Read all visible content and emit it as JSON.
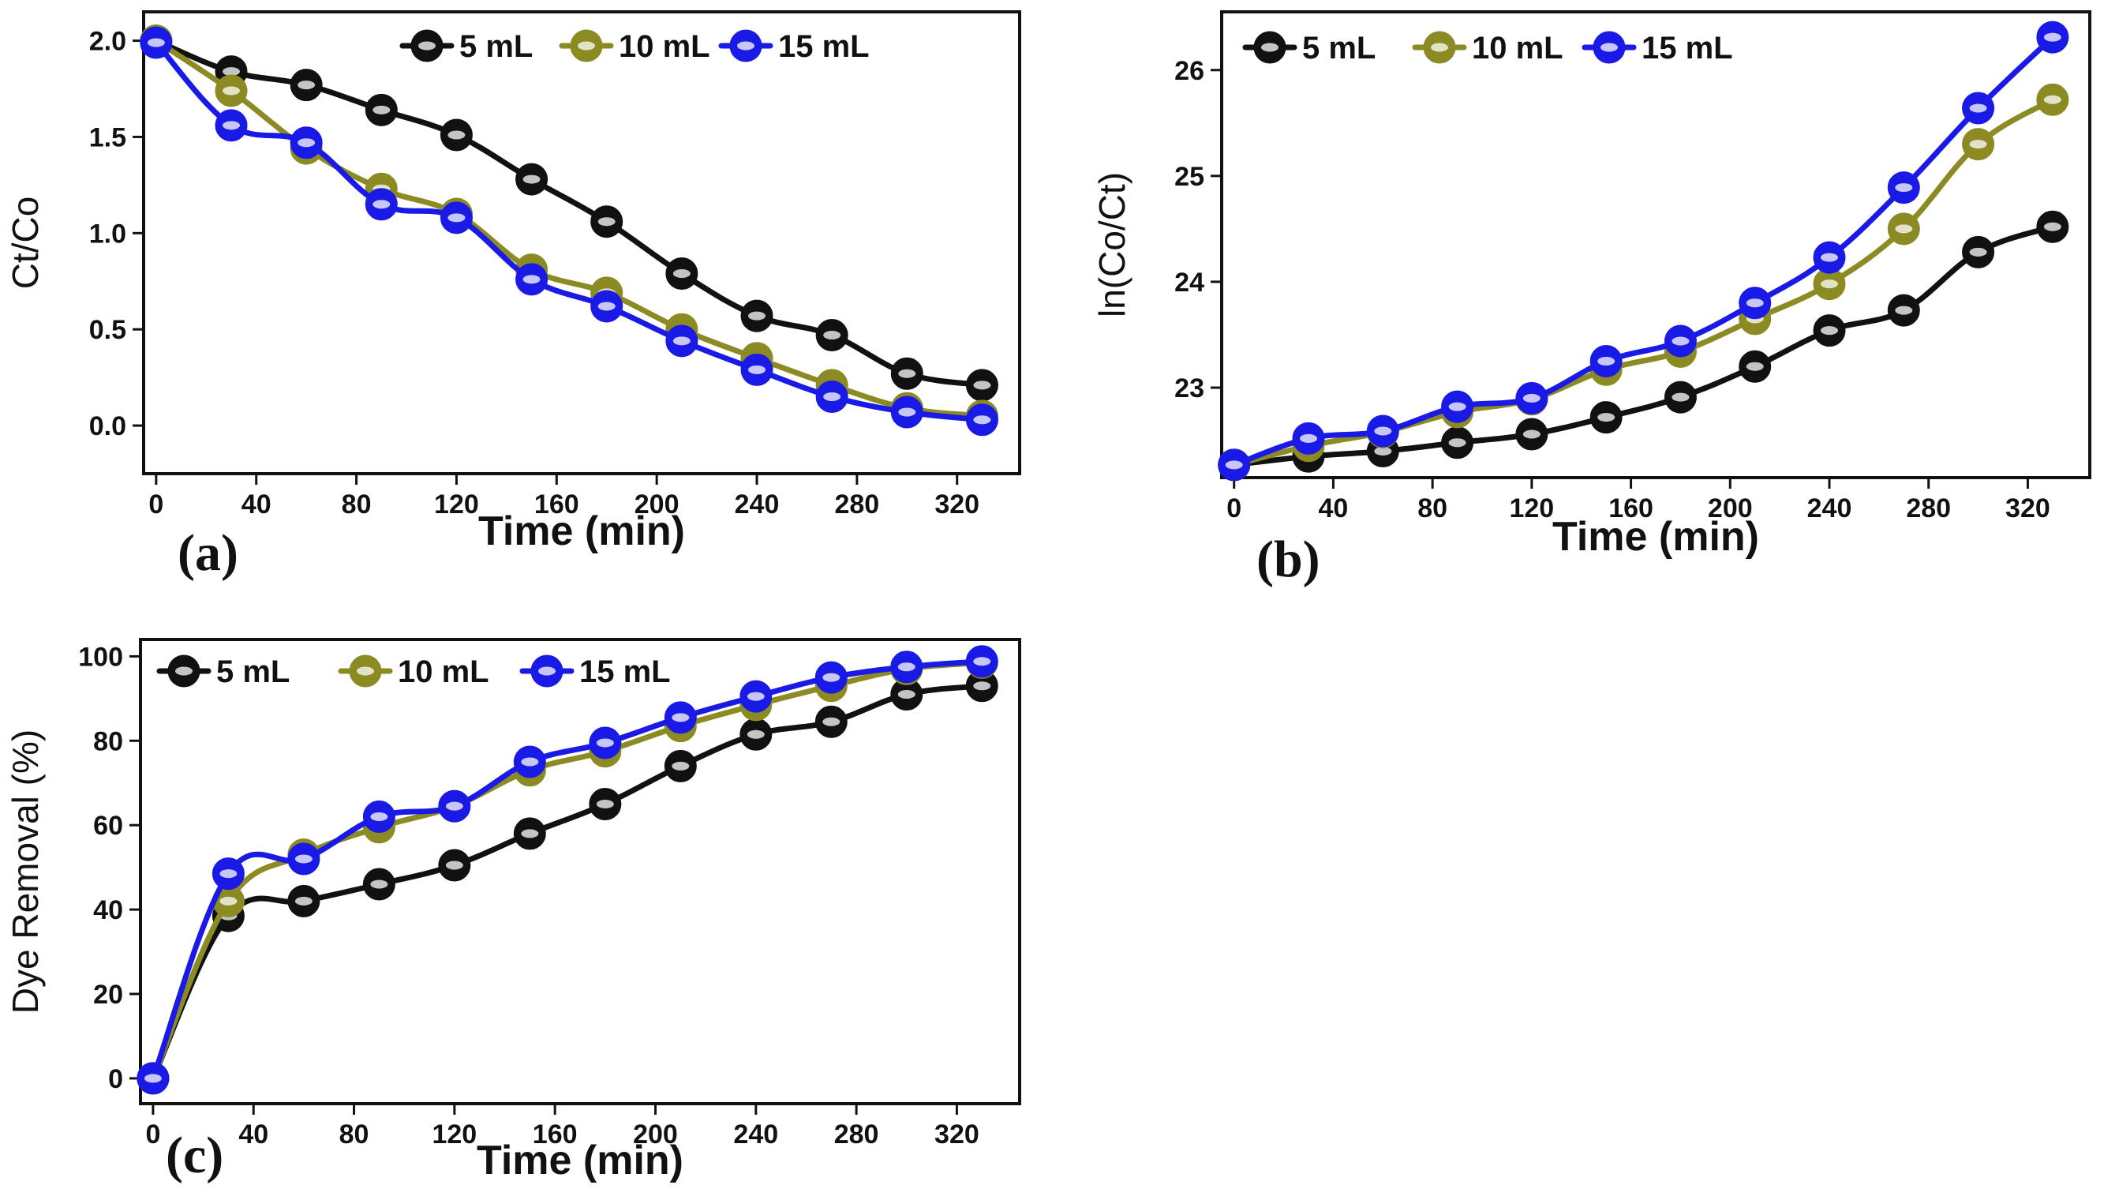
{
  "chart_data": [
    {
      "panel": "(a)",
      "type": "line",
      "xlabel": "Time (min)",
      "ylabel": "Ct/Co",
      "xlim": [
        -5,
        345
      ],
      "ylim": [
        -0.25,
        2.15
      ],
      "xticks": [
        "0",
        "40",
        "80",
        "120",
        "160",
        "200",
        "240",
        "280",
        "320"
      ],
      "yticks": [
        "0.0",
        "0.5",
        "1.0",
        "1.5",
        "2.0"
      ],
      "legend_position": "top",
      "x": [
        0,
        30,
        60,
        90,
        120,
        150,
        180,
        210,
        240,
        270,
        300,
        330
      ],
      "series": [
        {
          "name": "5 mL",
          "color": "#111111",
          "values": [
            2.0,
            1.84,
            1.77,
            1.64,
            1.51,
            1.28,
            1.06,
            0.79,
            0.57,
            0.47,
            0.27,
            0.21
          ]
        },
        {
          "name": "10 mL",
          "color": "#8c8a22",
          "values": [
            2.0,
            1.74,
            1.44,
            1.23,
            1.1,
            0.81,
            0.69,
            0.5,
            0.35,
            0.21,
            0.09,
            0.05
          ]
        },
        {
          "name": "15 mL",
          "color": "#1a1ae6",
          "values": [
            1.99,
            1.56,
            1.47,
            1.15,
            1.08,
            0.76,
            0.62,
            0.44,
            0.29,
            0.15,
            0.07,
            0.03
          ]
        }
      ]
    },
    {
      "panel": "(b)",
      "type": "line",
      "xlabel": "Time (min)",
      "ylabel": "ln(Co/Ct)",
      "xlim": [
        -5,
        345
      ],
      "ylim": [
        22.15,
        26.55
      ],
      "xticks": [
        "0",
        "40",
        "80",
        "120",
        "160",
        "200",
        "240",
        "280",
        "320"
      ],
      "yticks": [
        "23",
        "24",
        "25",
        "26"
      ],
      "legend_position": "top",
      "x": [
        0,
        30,
        60,
        90,
        120,
        150,
        180,
        210,
        240,
        270,
        300,
        330
      ],
      "series": [
        {
          "name": "5 mL",
          "color": "#111111",
          "values": [
            22.27,
            22.35,
            22.4,
            22.48,
            22.56,
            22.72,
            22.91,
            23.2,
            23.54,
            23.73,
            24.28,
            24.52
          ]
        },
        {
          "name": "10 mL",
          "color": "#8c8a22",
          "values": [
            22.27,
            22.45,
            22.58,
            22.77,
            22.89,
            23.17,
            23.34,
            23.65,
            23.98,
            24.5,
            25.3,
            25.72
          ]
        },
        {
          "name": "15 mL",
          "color": "#1a1ae6",
          "values": [
            22.27,
            22.52,
            22.59,
            22.82,
            22.9,
            23.25,
            23.44,
            23.8,
            24.23,
            24.89,
            25.64,
            26.31
          ]
        }
      ]
    },
    {
      "panel": "(c)",
      "type": "line",
      "xlabel": "Time (min)",
      "ylabel": "Dye Removal (%)",
      "xlim": [
        -5,
        345
      ],
      "ylim": [
        -6,
        104
      ],
      "xticks": [
        "0",
        "40",
        "80",
        "120",
        "160",
        "200",
        "240",
        "280",
        "320"
      ],
      "yticks": [
        "0",
        "20",
        "40",
        "60",
        "80",
        "100"
      ],
      "legend_position": "top-left",
      "x": [
        0,
        30,
        60,
        90,
        120,
        150,
        180,
        210,
        240,
        270,
        300,
        330
      ],
      "series": [
        {
          "name": "5 mL",
          "color": "#111111",
          "values": [
            0,
            38.5,
            42,
            46,
            50.5,
            58,
            65,
            74,
            81.5,
            84.5,
            91,
            93
          ]
        },
        {
          "name": "10 mL",
          "color": "#8c8a22",
          "values": [
            0,
            42,
            53,
            59.5,
            64.5,
            73,
            77.5,
            83.5,
            88.5,
            93,
            97,
            98.5
          ]
        },
        {
          "name": "15 mL",
          "color": "#1a1ae6",
          "values": [
            0,
            48.5,
            52,
            62,
            64.5,
            75,
            79.5,
            85.5,
            90.5,
            95,
            97.5,
            98.8
          ]
        }
      ]
    }
  ]
}
